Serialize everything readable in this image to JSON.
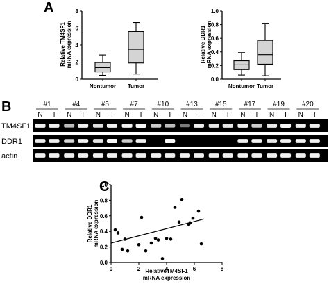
{
  "panels": {
    "A": "A",
    "B": "B",
    "C": "C"
  },
  "boxplots": [
    {
      "ylabel": "Relative TM4SF1\nmRNA expression",
      "yticks": [
        0,
        2,
        4,
        6,
        8
      ],
      "ylim": [
        0,
        8
      ],
      "categories": [
        "Nontumor",
        "Tumor"
      ],
      "boxes": [
        {
          "min": 0.45,
          "q1": 0.85,
          "median": 1.35,
          "q3": 1.95,
          "max": 2.85
        },
        {
          "min": 0.6,
          "q1": 1.9,
          "median": 3.5,
          "q3": 5.6,
          "max": 6.65
        }
      ]
    },
    {
      "ylabel": "Relative DDR1\nmRNA expression",
      "yticks": [
        0.0,
        0.2,
        0.4,
        0.6,
        0.8,
        1.0
      ],
      "ylim": [
        0,
        1.0
      ],
      "categories": [
        "Nontumor",
        "Tumor"
      ],
      "boxes": [
        {
          "min": 0.06,
          "q1": 0.14,
          "median": 0.21,
          "q3": 0.27,
          "max": 0.39
        },
        {
          "min": 0.05,
          "q1": 0.22,
          "median": 0.36,
          "q3": 0.57,
          "max": 0.82
        }
      ]
    }
  ],
  "gel": {
    "lane_headers": [
      "#1",
      "#4",
      "#5",
      "#7",
      "#10",
      "#13",
      "#15",
      "#17",
      "#19",
      "#20"
    ],
    "lane_labels": [
      "N",
      "T"
    ],
    "rows": [
      {
        "name": "TM4SF1",
        "intensity": [
          0.9,
          0.9,
          0.6,
          0.9,
          0.8,
          0.9,
          0.9,
          0.95,
          0.7,
          0.6,
          0.2,
          0.9,
          0.85,
          0.85,
          0.9,
          0.7,
          0.85,
          0.95,
          0.9,
          0.9
        ]
      },
      {
        "name": "DDR1",
        "intensity": [
          0.9,
          0.9,
          0.75,
          0.9,
          0.85,
          0.95,
          0.7,
          0.9,
          0.0,
          0.95,
          0.0,
          0.0,
          0.0,
          0.0,
          0.9,
          0.9,
          0.85,
          0.9,
          0.9,
          0.9
        ]
      },
      {
        "name": "actin",
        "intensity": [
          0.9,
          0.9,
          0.9,
          0.9,
          0.9,
          0.9,
          0.9,
          0.9,
          0.9,
          0.9,
          0.9,
          0.9,
          0.9,
          0.9,
          0.9,
          0.9,
          0.9,
          0.9,
          0.9,
          0.9
        ]
      }
    ]
  },
  "chart_data": {
    "type": "scatter",
    "xlabel": "RelativeTM4SF1\nmRNA expression",
    "ylabel": "Relative DDR1\nmRNA expression",
    "xlim": [
      0,
      8
    ],
    "ylim": [
      0,
      1.0
    ],
    "xticks": [
      0,
      2,
      4,
      6,
      8
    ],
    "yticks": [
      0.0,
      0.2,
      0.4,
      0.6,
      0.8,
      1.0
    ],
    "points": [
      [
        0.3,
        0.42
      ],
      [
        0.5,
        0.38
      ],
      [
        0.8,
        0.17
      ],
      [
        1.0,
        0.3
      ],
      [
        1.2,
        0.15
      ],
      [
        2.0,
        0.23
      ],
      [
        2.2,
        0.58
      ],
      [
        2.5,
        0.15
      ],
      [
        2.9,
        0.25
      ],
      [
        3.2,
        0.31
      ],
      [
        3.4,
        0.29
      ],
      [
        3.7,
        0.05
      ],
      [
        4.0,
        0.31
      ],
      [
        4.3,
        0.3
      ],
      [
        4.6,
        0.71
      ],
      [
        4.9,
        0.52
      ],
      [
        5.1,
        0.81
      ],
      [
        5.6,
        0.49
      ],
      [
        5.7,
        0.51
      ],
      [
        5.9,
        0.57
      ],
      [
        6.3,
        0.66
      ],
      [
        6.5,
        0.24
      ]
    ],
    "fit_line": {
      "x": [
        0,
        6.7
      ],
      "y": [
        0.25,
        0.56
      ]
    }
  }
}
